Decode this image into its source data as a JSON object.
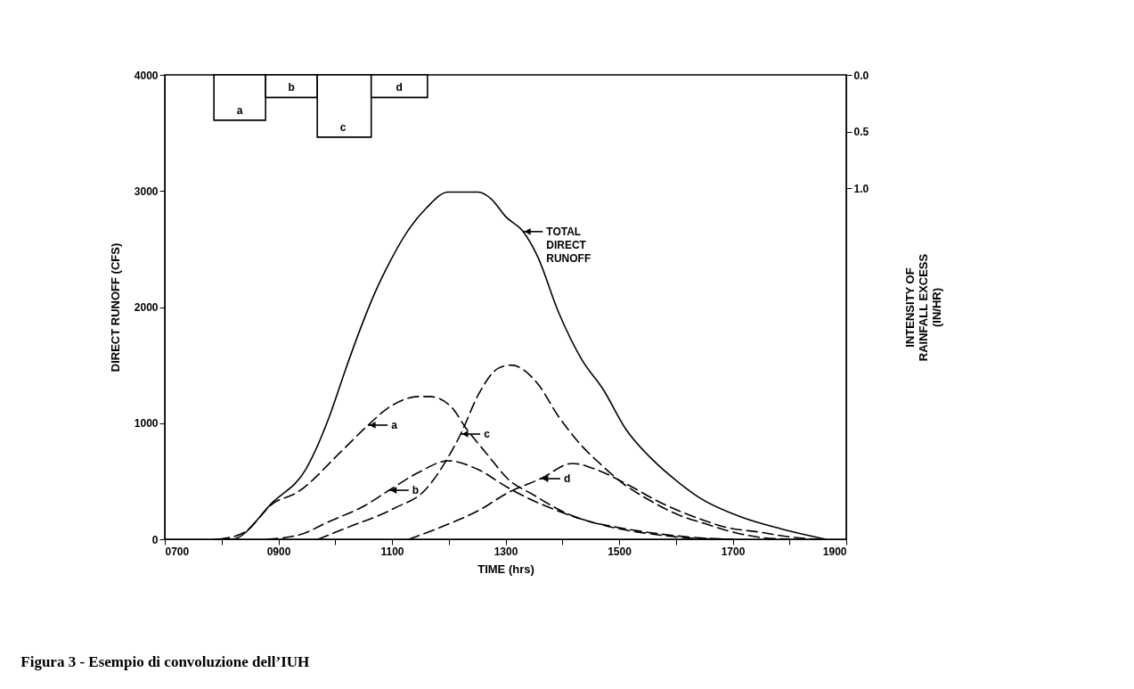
{
  "chart_data": {
    "type": "line",
    "title": "Figura 3 - Esempio di convoluzione dell’IUH",
    "xlabel": "TIME  (hrs)",
    "ylabel": "DIRECT RUNOFF  (CFS)",
    "y2label": "INTENSITY OF\nRAINFALL EXCESS\n(IN/HR)",
    "xlim": [
      700,
      1900
    ],
    "xticks": [
      {
        "value": 700,
        "label": "0700"
      },
      {
        "value": 800,
        "label": null
      },
      {
        "value": 900,
        "label": "0900"
      },
      {
        "value": 1000,
        "label": null
      },
      1100,
      {
        "value": 1200,
        "label": null
      },
      1300,
      {
        "value": 1400,
        "label": null
      },
      1500,
      {
        "value": 1600,
        "label": null
      },
      1700,
      {
        "value": 1800,
        "label": null
      },
      1900
    ],
    "ylim": [
      0,
      4000
    ],
    "yticks": [
      0,
      1000,
      2000,
      3000,
      4000
    ],
    "y2lim": [
      4.1,
      0
    ],
    "y2ticks": [
      {
        "value": 0,
        "label": "0.0"
      },
      0.5,
      {
        "value": 1,
        "label": "1.0"
      }
    ],
    "series": [
      {
        "color": "#000000",
        "line_style": "solid",
        "x": [
          788,
          818,
          891,
          948,
          990,
          1017,
          1042,
          1069,
          1089,
          1127,
          1160,
          1199,
          1252,
          1275,
          1300,
          1331,
          1356,
          1393,
          1434,
          1472,
          1513,
          1560,
          1602,
          1644,
          1716,
          1785,
          1864
        ],
        "values": [
          0,
          0,
          323,
          600,
          1060,
          1444,
          1782,
          2112,
          2319,
          2650,
          2850,
          2990,
          2990,
          2930,
          2780,
          2650,
          2440,
          1960,
          1550,
          1290,
          940,
          680,
          500,
          350,
          190,
          90,
          0
        ]
      },
      {
        "color": "#000000",
        "line_style": "dashed",
        "x": [
          795,
          840,
          891,
          932,
          1010,
          1058,
          1095,
          1147,
          1167,
          1205,
          1230,
          1268,
          1304,
          1350,
          1400,
          1450,
          1500,
          1550,
          1600,
          1650,
          1700
        ],
        "values": [
          0,
          60,
          310,
          400,
          753,
          983,
          1137,
          1229,
          1229,
          1137,
          960,
          730,
          520,
          380,
          240,
          150,
          100,
          60,
          30,
          10,
          0
        ]
      },
      {
        "color": "#000000",
        "line_style": "dashed",
        "x": [
          880,
          938,
          990,
          1053,
          1095,
          1147,
          1199,
          1252,
          1304,
          1350,
          1400,
          1450,
          1500,
          1550,
          1600,
          1650,
          1700
        ],
        "values": [
          0,
          40,
          154,
          292,
          422,
          576,
          676,
          600,
          445,
          330,
          230,
          150,
          90,
          50,
          20,
          5,
          0
        ]
      },
      {
        "color": "#000000",
        "line_style": "dashed",
        "x": [
          970,
          1017,
          1105,
          1158,
          1199,
          1221,
          1252,
          1288,
          1310,
          1356,
          1393,
          1434,
          1466,
          1508,
          1550,
          1602,
          1654,
          1707,
          1750,
          1800
        ],
        "values": [
          0,
          92,
          269,
          422,
          707,
          906,
          1244,
          1475,
          1500,
          1344,
          1060,
          806,
          653,
          476,
          346,
          215,
          130,
          54,
          15,
          0
        ]
      },
      {
        "color": "#000000",
        "line_style": "dashed",
        "x": [
          1130,
          1199,
          1252,
          1304,
          1362,
          1418,
          1460,
          1513,
          1570,
          1633,
          1691,
          1748,
          1800,
          1850
        ],
        "values": [
          0,
          130,
          246,
          400,
          522,
          653,
          600,
          476,
          323,
          192,
          100,
          61,
          20,
          0
        ]
      },
      {
        "type": "bar",
        "axis": "y2",
        "color": "#000000",
        "x": [
          832,
          923,
          1014,
          1113
        ],
        "values": [
          0.4,
          0.2,
          0.55,
          0.2
        ],
        "value_labels": [
          "a",
          "b",
          "c",
          "d"
        ]
      }
    ],
    "annotations": [
      {
        "text": "TOTAL\nDIRECT\nRUNOFF",
        "x": 1331,
        "y": 2650
      },
      {
        "text": "a",
        "x": 1058,
        "y": 983
      },
      {
        "text": "b",
        "x": 1095,
        "y": 422
      },
      {
        "text": "c",
        "x": 1221,
        "y": 906
      },
      {
        "text": "d",
        "x": 1362,
        "y": 522
      }
    ]
  }
}
